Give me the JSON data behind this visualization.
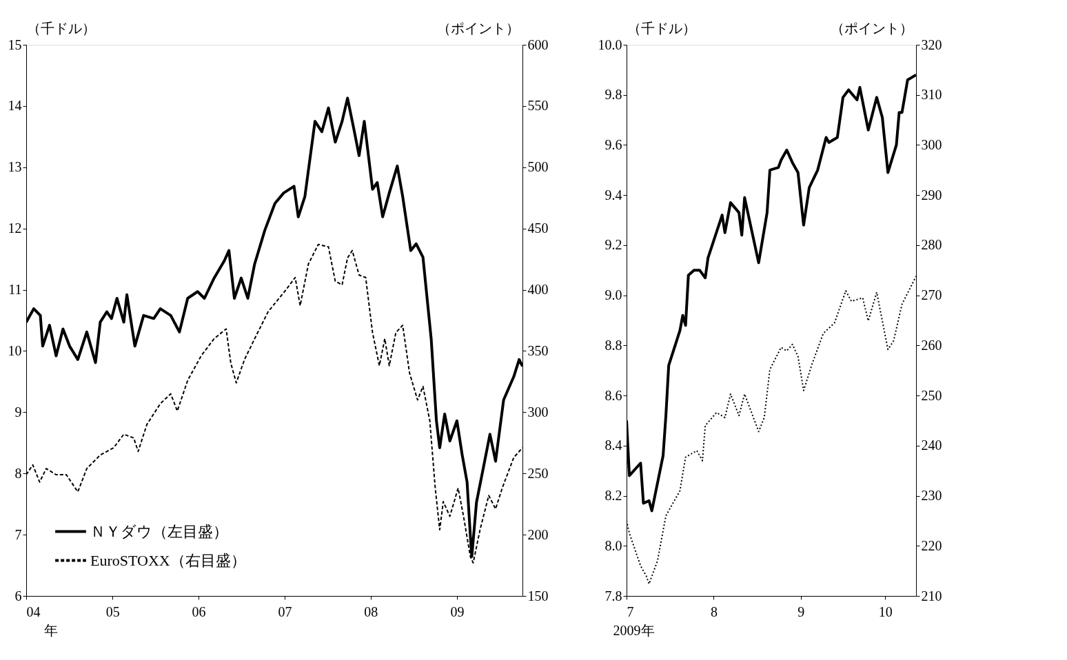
{
  "chart_data": [
    {
      "type": "line",
      "xlabel": "年",
      "ylabel": "（千ドル）",
      "y2label": "（ポイント）",
      "legend": "bottom left",
      "xlim": [
        "2004-01-01",
        "2009-10-06"
      ],
      "xticks": [
        {
          "value": "2004-01-01",
          "label": "04"
        },
        {
          "value": "2005-01-01",
          "label": "05"
        },
        {
          "value": "2006-01-01",
          "label": "06"
        },
        {
          "value": "2007-01-01",
          "label": "07"
        },
        {
          "value": "2008-01-01",
          "label": "08"
        },
        {
          "value": "2009-01-01",
          "label": "09"
        }
      ],
      "ylim": [
        6,
        15
      ],
      "yticks": [
        6,
        7,
        8,
        9,
        10,
        11,
        12,
        13,
        14,
        15
      ],
      "y2lim": [
        150,
        600
      ],
      "y2ticks": [
        150,
        200,
        250,
        300,
        350,
        400,
        450,
        500,
        550,
        600
      ],
      "series": [
        {
          "name": "ＮＹダウ（左目盛）",
          "color": "#000000",
          "line_style": "solid",
          "x": [
            "2004-01-01",
            "2004-02-02",
            "2004-03-01",
            "2004-03-11",
            "2004-04-09",
            "2004-05-07",
            "2004-06-05",
            "2004-07-03",
            "2004-08-07",
            "2004-09-14",
            "2004-10-21",
            "2004-11-10",
            "2004-12-08",
            "2004-12-28",
            "2005-01-20",
            "2005-02-18",
            "2005-03-03",
            "2005-04-06",
            "2005-05-13",
            "2005-06-25",
            "2005-07-23",
            "2005-09-05",
            "2005-10-12",
            "2005-11-16",
            "2005-12-28",
            "2006-01-26",
            "2006-03-08",
            "2006-04-20",
            "2006-05-10",
            "2006-06-02",
            "2006-07-01",
            "2006-07-29",
            "2006-08-27",
            "2006-10-09",
            "2006-11-21",
            "2006-12-28",
            "2007-02-10",
            "2007-02-28",
            "2007-03-28",
            "2007-05-10",
            "2007-06-08",
            "2007-07-06",
            "2007-08-04",
            "2007-09-02",
            "2007-09-25",
            "2007-10-24",
            "2007-11-13",
            "2007-12-05",
            "2008-01-09",
            "2008-01-29",
            "2008-02-21",
            "2008-03-20",
            "2008-04-23",
            "2008-05-16",
            "2008-06-19",
            "2008-07-12",
            "2008-08-10",
            "2008-09-14",
            "2008-10-06",
            "2008-10-20",
            "2008-11-10",
            "2008-12-02",
            "2009-01-01",
            "2009-01-23",
            "2009-02-13",
            "2009-02-27",
            "2009-03-05",
            "2009-03-25",
            "2009-04-23",
            "2009-05-21",
            "2009-06-14",
            "2009-07-18",
            "2009-08-30",
            "2009-09-22",
            "2009-10-06"
          ],
          "values": [
            10.47,
            10.69,
            10.58,
            10.08,
            10.42,
            9.92,
            10.36,
            10.08,
            9.86,
            10.31,
            9.81,
            10.47,
            10.64,
            10.53,
            10.86,
            10.47,
            10.92,
            10.08,
            10.58,
            10.53,
            10.69,
            10.58,
            10.31,
            10.86,
            10.97,
            10.86,
            11.19,
            11.47,
            11.64,
            10.86,
            11.19,
            10.86,
            11.42,
            11.97,
            12.41,
            12.58,
            12.69,
            12.19,
            12.52,
            13.75,
            13.58,
            13.97,
            13.41,
            13.75,
            14.13,
            13.58,
            13.19,
            13.75,
            12.64,
            12.75,
            12.19,
            12.58,
            13.02,
            12.52,
            11.64,
            11.75,
            11.53,
            10.19,
            8.86,
            8.42,
            8.97,
            8.53,
            8.86,
            8.31,
            7.86,
            6.98,
            6.64,
            7.53,
            8.09,
            8.64,
            8.2,
            9.2,
            9.58,
            9.86,
            9.75
          ]
        },
        {
          "name": "EuroSTOXX（右目盛）",
          "color": "#000000",
          "line_style": "dashed",
          "axis": "y2",
          "x": [
            "2004-01-01",
            "2004-01-29",
            "2004-02-27",
            "2004-03-26",
            "2004-05-07",
            "2004-06-19",
            "2004-08-07",
            "2004-09-14",
            "2004-11-10",
            "2005-01-06",
            "2005-02-18",
            "2005-04-01",
            "2005-04-20",
            "2005-05-27",
            "2005-07-23",
            "2005-09-05",
            "2005-10-03",
            "2005-11-16",
            "2006-01-12",
            "2006-03-08",
            "2006-04-28",
            "2006-05-18",
            "2006-06-10",
            "2006-07-15",
            "2006-08-27",
            "2006-10-23",
            "2007-01-03",
            "2007-02-15",
            "2007-03-08",
            "2007-04-12",
            "2007-05-24",
            "2007-07-06",
            "2007-08-04",
            "2007-09-02",
            "2007-09-25",
            "2007-10-15",
            "2007-11-13",
            "2007-12-11",
            "2008-01-09",
            "2008-02-07",
            "2008-03-01",
            "2008-03-20",
            "2008-04-17",
            "2008-05-16",
            "2008-06-14",
            "2008-07-18",
            "2008-08-10",
            "2008-09-08",
            "2008-10-01",
            "2008-10-20",
            "2008-11-04",
            "2008-12-02",
            "2009-01-06",
            "2009-01-29",
            "2009-02-27",
            "2009-03-11",
            "2009-04-09",
            "2009-05-16",
            "2009-06-14",
            "2009-07-12",
            "2009-08-30",
            "2009-10-06"
          ],
          "values": [
            249,
            257,
            243,
            254,
            249,
            249,
            235,
            254,
            265,
            271,
            282,
            279,
            268,
            290,
            307,
            315,
            301,
            326,
            346,
            360,
            368,
            340,
            324,
            343,
            360,
            382,
            399,
            410,
            387,
            421,
            437,
            435,
            407,
            404,
            426,
            432,
            412,
            410,
            365,
            338,
            360,
            338,
            365,
            371,
            332,
            310,
            321,
            293,
            238,
            204,
            227,
            215,
            238,
            215,
            182,
            177,
            204,
            232,
            221,
            238,
            263,
            271
          ]
        }
      ]
    },
    {
      "type": "line",
      "xlabel": "2009年",
      "ylabel": "（千ドル）",
      "y2label": "（ポイント）",
      "xlim": [
        "2009-07-01",
        "2009-10-12"
      ],
      "xticks": [
        {
          "value": "2009-07-01",
          "label": "7"
        },
        {
          "value": "2009-08-01",
          "label": "8"
        },
        {
          "value": "2009-09-01",
          "label": "9"
        },
        {
          "value": "2009-10-01",
          "label": "10"
        }
      ],
      "ylim": [
        7.8,
        10.0
      ],
      "yticks": [
        {
          "value": 7.8,
          "label": "7.8"
        },
        {
          "value": 8.0,
          "label": "8.0"
        },
        {
          "value": 8.2,
          "label": "8.2"
        },
        {
          "value": 8.4,
          "label": "8.4"
        },
        {
          "value": 8.6,
          "label": "8.6"
        },
        {
          "value": 8.8,
          "label": "8.8"
        },
        {
          "value": 9.0,
          "label": "9.0"
        },
        {
          "value": 9.2,
          "label": "9.2"
        },
        {
          "value": 9.4,
          "label": "9.4"
        },
        {
          "value": 9.6,
          "label": "9.6"
        },
        {
          "value": 9.8,
          "label": "9.8"
        },
        {
          "value": 10.0,
          "label": "10.0"
        }
      ],
      "y2lim": [
        210,
        320
      ],
      "y2ticks": [
        210,
        220,
        230,
        240,
        250,
        260,
        270,
        280,
        290,
        300,
        310,
        320
      ],
      "series": [
        {
          "color": "#000000",
          "line_style": "solid",
          "x": [
            "2009-07-01",
            "2009-07-02",
            "2009-07-06",
            "2009-07-07",
            "2009-07-09",
            "2009-07-10",
            "2009-07-14",
            "2009-07-15",
            "2009-07-16",
            "2009-07-20",
            "2009-07-21",
            "2009-07-22",
            "2009-07-23",
            "2009-07-25",
            "2009-07-27",
            "2009-07-29",
            "2009-07-30",
            "2009-08-04",
            "2009-08-05",
            "2009-08-07",
            "2009-08-10",
            "2009-08-11",
            "2009-08-12",
            "2009-08-17",
            "2009-08-20",
            "2009-08-21",
            "2009-08-24",
            "2009-08-25",
            "2009-08-27",
            "2009-08-29",
            "2009-08-31",
            "2009-09-02",
            "2009-09-04",
            "2009-09-07",
            "2009-09-10",
            "2009-09-11",
            "2009-09-14",
            "2009-09-16",
            "2009-09-18",
            "2009-09-21",
            "2009-09-22",
            "2009-09-25",
            "2009-09-28",
            "2009-09-30",
            "2009-10-02",
            "2009-10-05",
            "2009-10-06",
            "2009-10-07",
            "2009-10-09",
            "2009-10-12"
          ],
          "values": [
            8.5,
            8.28,
            8.33,
            8.17,
            8.18,
            8.14,
            8.36,
            8.52,
            8.72,
            8.86,
            8.92,
            8.88,
            9.08,
            9.1,
            9.1,
            9.07,
            9.15,
            9.32,
            9.25,
            9.37,
            9.33,
            9.24,
            9.39,
            9.13,
            9.33,
            9.5,
            9.51,
            9.54,
            9.58,
            9.53,
            9.49,
            9.28,
            9.43,
            9.5,
            9.63,
            9.61,
            9.63,
            9.79,
            9.82,
            9.78,
            9.83,
            9.66,
            9.79,
            9.71,
            9.49,
            9.6,
            9.73,
            9.73,
            9.86,
            9.88
          ]
        },
        {
          "color": "#000000",
          "line_style": "dotted",
          "axis": "y2",
          "x": [
            "2009-07-01",
            "2009-07-02",
            "2009-07-06",
            "2009-07-08",
            "2009-07-09",
            "2009-07-12",
            "2009-07-15",
            "2009-07-20",
            "2009-07-22",
            "2009-07-26",
            "2009-07-28",
            "2009-07-29",
            "2009-08-02",
            "2009-08-05",
            "2009-08-07",
            "2009-08-10",
            "2009-08-12",
            "2009-08-17",
            "2009-08-19",
            "2009-08-21",
            "2009-08-25",
            "2009-08-27",
            "2009-08-29",
            "2009-08-31",
            "2009-09-02",
            "2009-09-05",
            "2009-09-09",
            "2009-09-13",
            "2009-09-17",
            "2009-09-19",
            "2009-09-23",
            "2009-09-25",
            "2009-09-28",
            "2009-10-02",
            "2009-10-04",
            "2009-10-07",
            "2009-10-12"
          ],
          "values": [
            225,
            222.5,
            216,
            214,
            212.4,
            217,
            226,
            231,
            237.7,
            239,
            237,
            244,
            246.6,
            245.6,
            250.3,
            246,
            250.3,
            242.8,
            245.6,
            255.2,
            259.6,
            258.9,
            260.2,
            257.8,
            251,
            256.3,
            262.4,
            264.5,
            270.9,
            268.8,
            269.5,
            264.9,
            270.6,
            259.2,
            260.9,
            268.2,
            273.8
          ]
        }
      ]
    }
  ]
}
